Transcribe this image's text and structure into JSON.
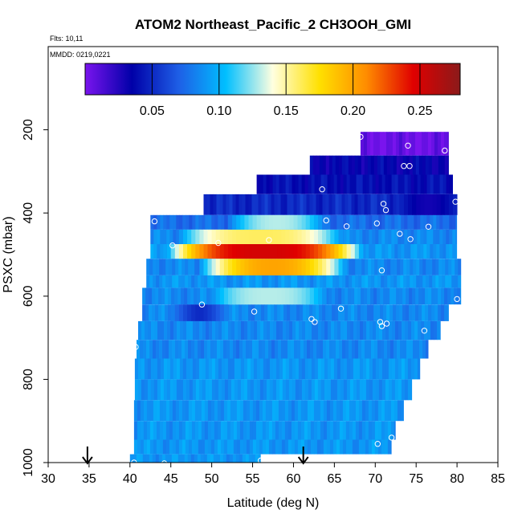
{
  "chart_data": {
    "type": "heatmap",
    "title": "ATOM2 Northeast_Pacific_2 CH3OOH_GMI",
    "annotations": {
      "flights": "Flts: 10,11",
      "dates": "MMDD: 0219,0221"
    },
    "xlabel": "Latitude (deg N)",
    "ylabel": "PSXC (mbar)",
    "xlim": [
      30,
      85
    ],
    "ylim": [
      1000,
      0
    ],
    "x_ticks": [
      "30",
      "35",
      "40",
      "45",
      "50",
      "55",
      "60",
      "65",
      "70",
      "75",
      "80",
      "85"
    ],
    "y_ticks": [
      "200",
      "400",
      "600",
      "800",
      "1000"
    ],
    "colorbar": {
      "range": [
        0,
        0.28
      ],
      "ticks": [
        "0.05",
        "0.10",
        "0.15",
        "0.20",
        "0.25"
      ],
      "colors": [
        "#7a14ee",
        "#0000a8",
        "#1e5fe6",
        "#00bfff",
        "#ffffe0",
        "#ffe000",
        "#ff8c00",
        "#e00000",
        "#8b1a1a"
      ]
    },
    "layers": [
      {
        "p_top": 205,
        "p_bot": 262,
        "lat_min": 68.2,
        "lat_max": 79,
        "value": 0.004
      },
      {
        "p_top": 262,
        "p_bot": 308,
        "lat_min": 62,
        "lat_max": 79,
        "value": 0.035
      },
      {
        "p_top": 308,
        "p_bot": 355,
        "lat_min": 55.5,
        "lat_max": 79.5,
        "value": 0.04
      },
      {
        "p_top": 355,
        "p_bot": 405,
        "lat_min": 49,
        "lat_max": 80,
        "value": 0.05
      },
      {
        "p_top": 405,
        "p_bot": 440,
        "lat_min": 42.5,
        "lat_max": 80,
        "value": 0.075
      },
      {
        "p_top": 440,
        "p_bot": 475,
        "lat_min": 42.5,
        "lat_max": 80,
        "value": 0.085
      },
      {
        "p_top": 475,
        "p_bot": 510,
        "lat_min": 42.5,
        "lat_max": 80,
        "value": 0.09
      },
      {
        "p_top": 510,
        "p_bot": 550,
        "lat_min": 42,
        "lat_max": 80.5,
        "value": 0.085
      },
      {
        "p_top": 550,
        "p_bot": 580,
        "lat_min": 42,
        "lat_max": 80.5,
        "value": 0.09
      },
      {
        "p_top": 580,
        "p_bot": 620,
        "lat_min": 41.5,
        "lat_max": 80.5,
        "value": 0.085
      },
      {
        "p_top": 620,
        "p_bot": 660,
        "lat_min": 41.5,
        "lat_max": 79,
        "value": 0.085
      },
      {
        "p_top": 660,
        "p_bot": 705,
        "lat_min": 41,
        "lat_max": 78,
        "value": 0.085
      },
      {
        "p_top": 705,
        "p_bot": 750,
        "lat_min": 40.8,
        "lat_max": 76.5,
        "value": 0.085
      },
      {
        "p_top": 750,
        "p_bot": 800,
        "lat_min": 40.6,
        "lat_max": 75.5,
        "value": 0.09
      },
      {
        "p_top": 800,
        "p_bot": 850,
        "lat_min": 40.6,
        "lat_max": 74.5,
        "value": 0.09
      },
      {
        "p_top": 850,
        "p_bot": 900,
        "lat_min": 40.5,
        "lat_max": 73.5,
        "value": 0.09
      },
      {
        "p_top": 900,
        "p_bot": 945,
        "lat_min": 40.5,
        "lat_max": 72.5,
        "value": 0.09
      },
      {
        "p_top": 945,
        "p_bot": 980,
        "lat_min": 40.5,
        "lat_max": 72,
        "value": 0.09
      },
      {
        "p_top": 980,
        "p_bot": 1010,
        "lat_min": 40,
        "lat_max": 56,
        "value": 0.09
      }
    ],
    "features": [
      {
        "lat_min": 44.5,
        "lat_max": 68.5,
        "p_top": 475,
        "p_bot": 510,
        "value": 0.25,
        "width": 6
      },
      {
        "lat_min": 48.5,
        "lat_max": 66.5,
        "p_top": 510,
        "p_bot": 550,
        "value": 0.2,
        "width": 5
      },
      {
        "lat_min": 46,
        "lat_max": 66,
        "p_top": 440,
        "p_bot": 475,
        "value": 0.16,
        "width": 6
      },
      {
        "lat_min": 52,
        "lat_max": 64,
        "p_top": 405,
        "p_bot": 440,
        "value": 0.13,
        "width": 5
      },
      {
        "lat_min": 50,
        "lat_max": 64,
        "p_top": 580,
        "p_bot": 620,
        "value": 0.13,
        "width": 6
      },
      {
        "lat_min": 45,
        "lat_max": 52,
        "p_top": 620,
        "p_bot": 660,
        "value": 0.05,
        "width": 3
      },
      {
        "lat_min": 73,
        "lat_max": 80,
        "p_top": 355,
        "p_bot": 405,
        "value": 0.03,
        "width": 4
      }
    ],
    "points": [
      {
        "lat": 68.2,
        "p": 217
      },
      {
        "lat": 74,
        "p": 238
      },
      {
        "lat": 78.5,
        "p": 250
      },
      {
        "lat": 73.5,
        "p": 287
      },
      {
        "lat": 74.2,
        "p": 287
      },
      {
        "lat": 63.5,
        "p": 343
      },
      {
        "lat": 71,
        "p": 378
      },
      {
        "lat": 71.3,
        "p": 393
      },
      {
        "lat": 79.8,
        "p": 373
      },
      {
        "lat": 43,
        "p": 420
      },
      {
        "lat": 64,
        "p": 418
      },
      {
        "lat": 66.5,
        "p": 432
      },
      {
        "lat": 70.2,
        "p": 425
      },
      {
        "lat": 76.5,
        "p": 433
      },
      {
        "lat": 73,
        "p": 450
      },
      {
        "lat": 74.3,
        "p": 463
      },
      {
        "lat": 45.2,
        "p": 478
      },
      {
        "lat": 50.8,
        "p": 472
      },
      {
        "lat": 57,
        "p": 465
      },
      {
        "lat": 70.8,
        "p": 538
      },
      {
        "lat": 80,
        "p": 607
      },
      {
        "lat": 48.8,
        "p": 620
      },
      {
        "lat": 55.2,
        "p": 637
      },
      {
        "lat": 65.8,
        "p": 630
      },
      {
        "lat": 62.2,
        "p": 655
      },
      {
        "lat": 62.6,
        "p": 662
      },
      {
        "lat": 70.6,
        "p": 662
      },
      {
        "lat": 70.8,
        "p": 672
      },
      {
        "lat": 71.4,
        "p": 666
      },
      {
        "lat": 76,
        "p": 683
      },
      {
        "lat": 40.7,
        "p": 722
      },
      {
        "lat": 72,
        "p": 940
      },
      {
        "lat": 70.3,
        "p": 955
      },
      {
        "lat": 40.5,
        "p": 1000
      },
      {
        "lat": 44.2,
        "p": 1002
      },
      {
        "lat": 56,
        "p": 995
      }
    ],
    "arrows": [
      {
        "lat": 34.8
      },
      {
        "lat": 61.2
      }
    ]
  }
}
